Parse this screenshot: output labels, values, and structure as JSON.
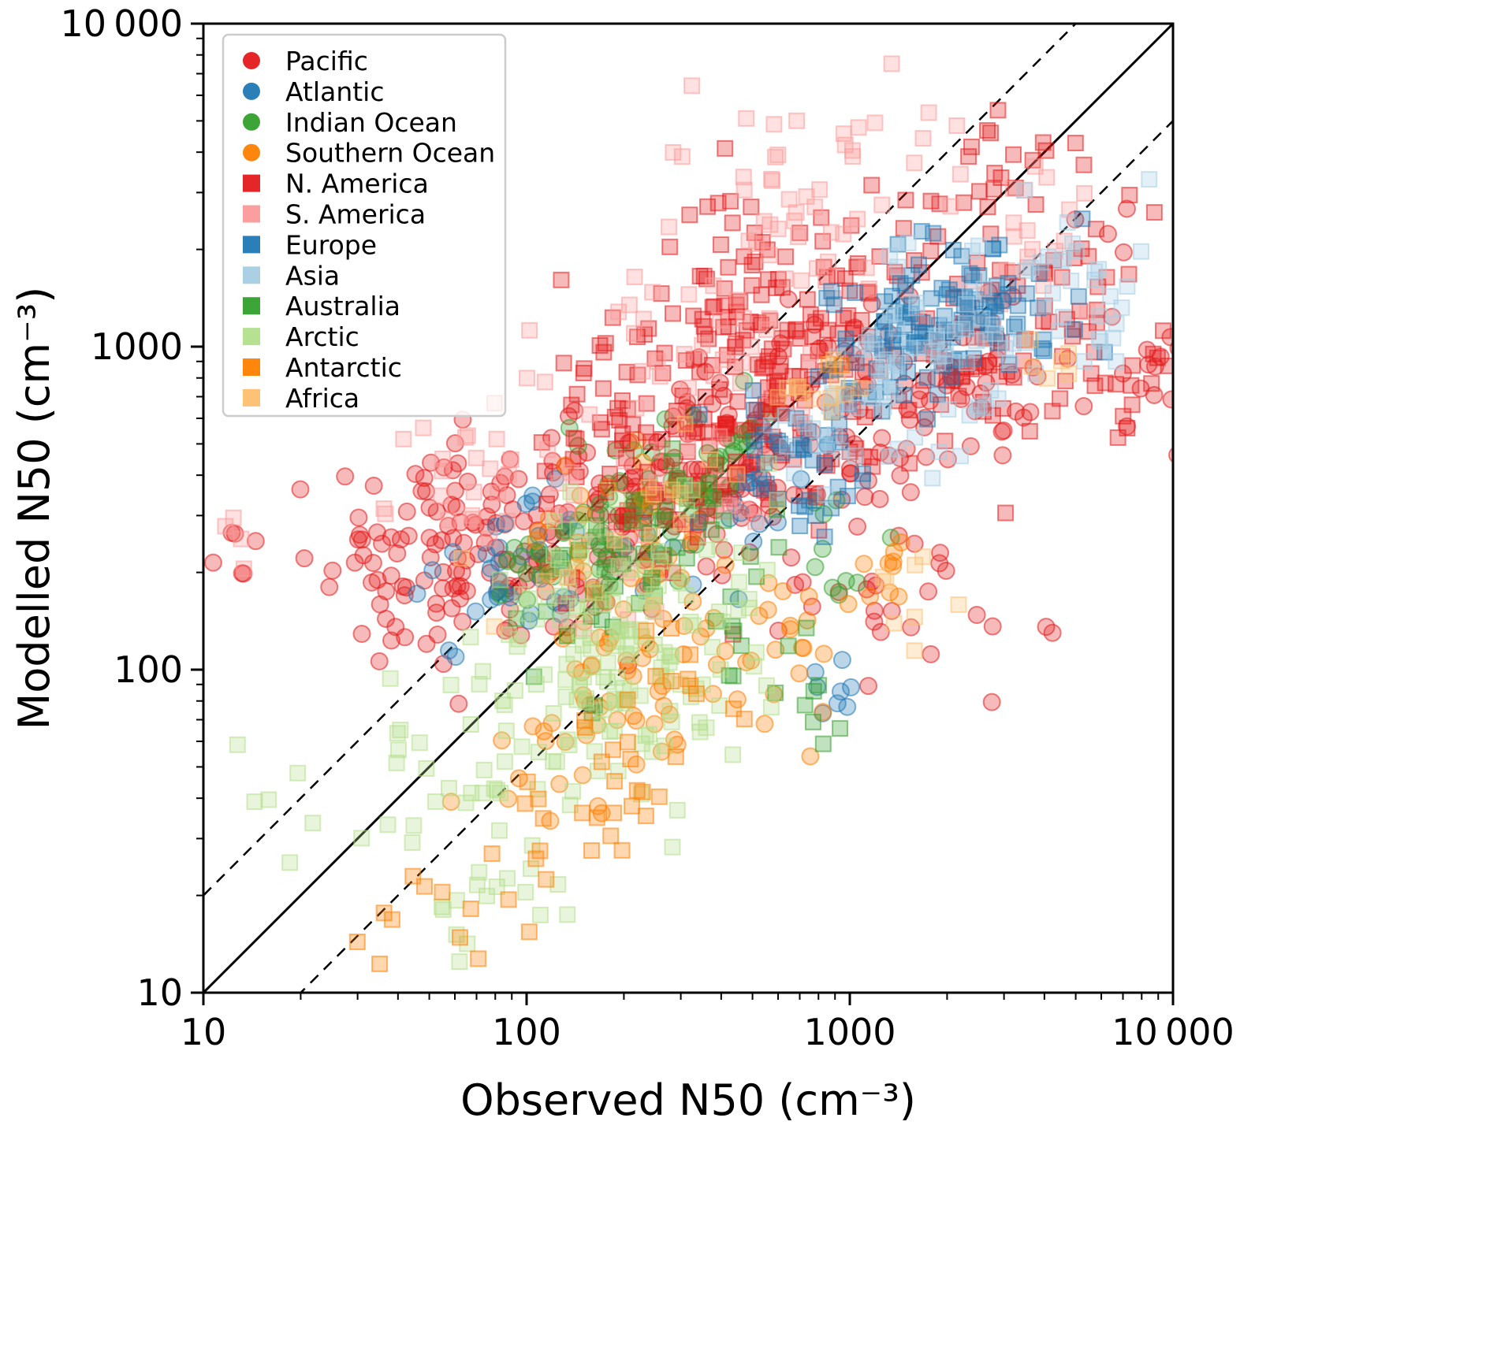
{
  "chart_data": {
    "type": "scatter",
    "title": "",
    "xlabel": "Observed N50 (cm⁻³)",
    "ylabel": "Modelled N50 (cm⁻³)",
    "x_scale": "log",
    "y_scale": "log",
    "xlim": [
      10,
      10000
    ],
    "ylim": [
      10,
      10000
    ],
    "x_ticks": [
      "10",
      "100",
      "1000",
      "10 000"
    ],
    "x_tick_values": [
      10,
      100,
      1000,
      10000
    ],
    "y_ticks": [
      "10",
      "100",
      "1000",
      "10 000"
    ],
    "y_tick_values": [
      10,
      100,
      1000,
      10000
    ],
    "grid": false,
    "legend_position": "upper-left",
    "marker_alpha": 0.35,
    "seed": 42,
    "reference_lines": [
      {
        "factor": 1,
        "style": "solid",
        "label": "one-to-one"
      },
      {
        "factor": 2,
        "style": "dashed",
        "label": "factor-2-above"
      },
      {
        "factor": 0.5,
        "style": "dashed",
        "label": "factor-2-below"
      }
    ],
    "cluster_fields": [
      "log10_x_center",
      "log10_y_center",
      "log10_x_spread",
      "log10_y_spread",
      "xy_correlation",
      "n_points"
    ],
    "series": [
      {
        "name": "Pacific",
        "marker": "circle",
        "color": "#e31a1c",
        "clusters": [
          [
            1.85,
            2.4,
            0.25,
            0.17,
            0.3,
            150
          ],
          [
            2.5,
            2.6,
            0.25,
            0.22,
            0.6,
            130
          ],
          [
            3.3,
            2.85,
            0.28,
            0.22,
            0.4,
            90
          ],
          [
            1.12,
            2.4,
            0.03,
            0.07,
            0.0,
            5
          ],
          [
            3.05,
            2.2,
            0.2,
            0.1,
            0.0,
            25
          ],
          [
            3.93,
            2.95,
            0.05,
            0.12,
            0.0,
            12
          ]
        ]
      },
      {
        "name": "Atlantic",
        "marker": "circle",
        "color": "#1f78b4",
        "clusters": [
          [
            2.05,
            2.35,
            0.18,
            0.14,
            0.4,
            45
          ],
          [
            2.95,
            1.95,
            0.05,
            0.06,
            0.0,
            8
          ],
          [
            2.7,
            2.5,
            0.15,
            0.15,
            0.5,
            15
          ]
        ]
      },
      {
        "name": "Indian Ocean",
        "marker": "circle",
        "color": "#33a02c",
        "clusters": [
          [
            2.25,
            2.45,
            0.2,
            0.15,
            0.4,
            55
          ],
          [
            2.6,
            2.7,
            0.1,
            0.1,
            0.5,
            20
          ],
          [
            2.9,
            2.35,
            0.1,
            0.1,
            0.0,
            10
          ]
        ]
      },
      {
        "name": "Southern Ocean",
        "marker": "circle",
        "color": "#ff7f00",
        "clusters": [
          [
            2.35,
            1.95,
            0.2,
            0.22,
            0.4,
            70
          ],
          [
            2.2,
            2.4,
            0.15,
            0.12,
            0.3,
            30
          ],
          [
            2.85,
            2.1,
            0.12,
            0.15,
            0.3,
            18
          ],
          [
            3.1,
            2.25,
            0.05,
            0.08,
            0.0,
            8
          ]
        ]
      },
      {
        "name": "N. America",
        "marker": "square",
        "color": "#e31a1c",
        "clusters": [
          [
            2.75,
            2.85,
            0.28,
            0.28,
            0.65,
            200
          ],
          [
            2.6,
            3.1,
            0.18,
            0.18,
            0.3,
            55
          ],
          [
            3.5,
            3.0,
            0.22,
            0.18,
            0.4,
            75
          ],
          [
            3.5,
            3.55,
            0.1,
            0.1,
            0.5,
            20
          ],
          [
            2.2,
            2.8,
            0.13,
            0.2,
            0.0,
            25
          ],
          [
            3.9,
            2.95,
            0.06,
            0.1,
            0.0,
            10
          ]
        ]
      },
      {
        "name": "S. America",
        "marker": "square",
        "color": "#fb9a99",
        "clusters": [
          [
            2.85,
            3.45,
            0.22,
            0.22,
            0.3,
            55
          ],
          [
            2.45,
            2.8,
            0.28,
            0.28,
            0.5,
            60
          ],
          [
            1.75,
            2.6,
            0.13,
            0.13,
            0.2,
            18
          ],
          [
            3.55,
            3.35,
            0.13,
            0.13,
            0.4,
            20
          ],
          [
            1.1,
            2.38,
            0.03,
            0.08,
            0.0,
            4
          ]
        ]
      },
      {
        "name": "Europe",
        "marker": "square",
        "color": "#1f78b4",
        "clusters": [
          [
            3.1,
            3.0,
            0.18,
            0.14,
            0.5,
            80
          ],
          [
            3.38,
            3.1,
            0.1,
            0.1,
            0.5,
            40
          ],
          [
            2.85,
            2.6,
            0.14,
            0.14,
            0.3,
            30
          ],
          [
            3.62,
            3.05,
            0.09,
            0.12,
            0.0,
            12
          ]
        ]
      },
      {
        "name": "Asia",
        "marker": "square",
        "color": "#a6cee3",
        "clusters": [
          [
            3.3,
            3.0,
            0.22,
            0.18,
            0.5,
            70
          ],
          [
            3.75,
            3.2,
            0.13,
            0.13,
            0.3,
            28
          ],
          [
            2.95,
            2.75,
            0.1,
            0.1,
            0.3,
            20
          ]
        ]
      },
      {
        "name": "Australia",
        "marker": "square",
        "color": "#33a02c",
        "clusters": [
          [
            2.3,
            2.35,
            0.18,
            0.18,
            0.5,
            50
          ],
          [
            2.72,
            2.18,
            0.08,
            0.12,
            0.0,
            12
          ],
          [
            2.9,
            1.85,
            0.05,
            0.07,
            0.0,
            6
          ]
        ]
      },
      {
        "name": "Arctic",
        "marker": "square",
        "color": "#b2df8a",
        "clusters": [
          [
            2.35,
            2.0,
            0.22,
            0.22,
            0.45,
            120
          ],
          [
            2.2,
            2.25,
            0.14,
            0.13,
            0.3,
            40
          ],
          [
            1.7,
            1.65,
            0.22,
            0.25,
            0.5,
            28
          ],
          [
            1.92,
            1.27,
            0.13,
            0.1,
            0.0,
            14
          ],
          [
            1.22,
            1.7,
            0.06,
            0.18,
            0.0,
            5
          ]
        ]
      },
      {
        "name": "Antarctic",
        "marker": "square",
        "color": "#ff7f00",
        "clusters": [
          [
            2.2,
            1.58,
            0.18,
            0.18,
            0.4,
            30
          ],
          [
            1.65,
            1.23,
            0.1,
            0.08,
            0.3,
            10
          ],
          [
            2.5,
            1.95,
            0.1,
            0.1,
            0.0,
            10
          ],
          [
            2.93,
            2.95,
            0.03,
            0.04,
            0.0,
            2
          ]
        ]
      },
      {
        "name": "Africa",
        "marker": "square",
        "color": "#fdbf6f",
        "clusters": [
          [
            2.95,
            2.9,
            0.08,
            0.08,
            0.3,
            10
          ],
          [
            3.18,
            2.25,
            0.08,
            0.08,
            0.0,
            8
          ],
          [
            2.6,
            2.5,
            0.18,
            0.18,
            0.4,
            14
          ],
          [
            3.6,
            2.95,
            0.09,
            0.07,
            0.0,
            6
          ],
          [
            2.0,
            2.25,
            0.1,
            0.1,
            0.0,
            5
          ]
        ]
      }
    ]
  }
}
